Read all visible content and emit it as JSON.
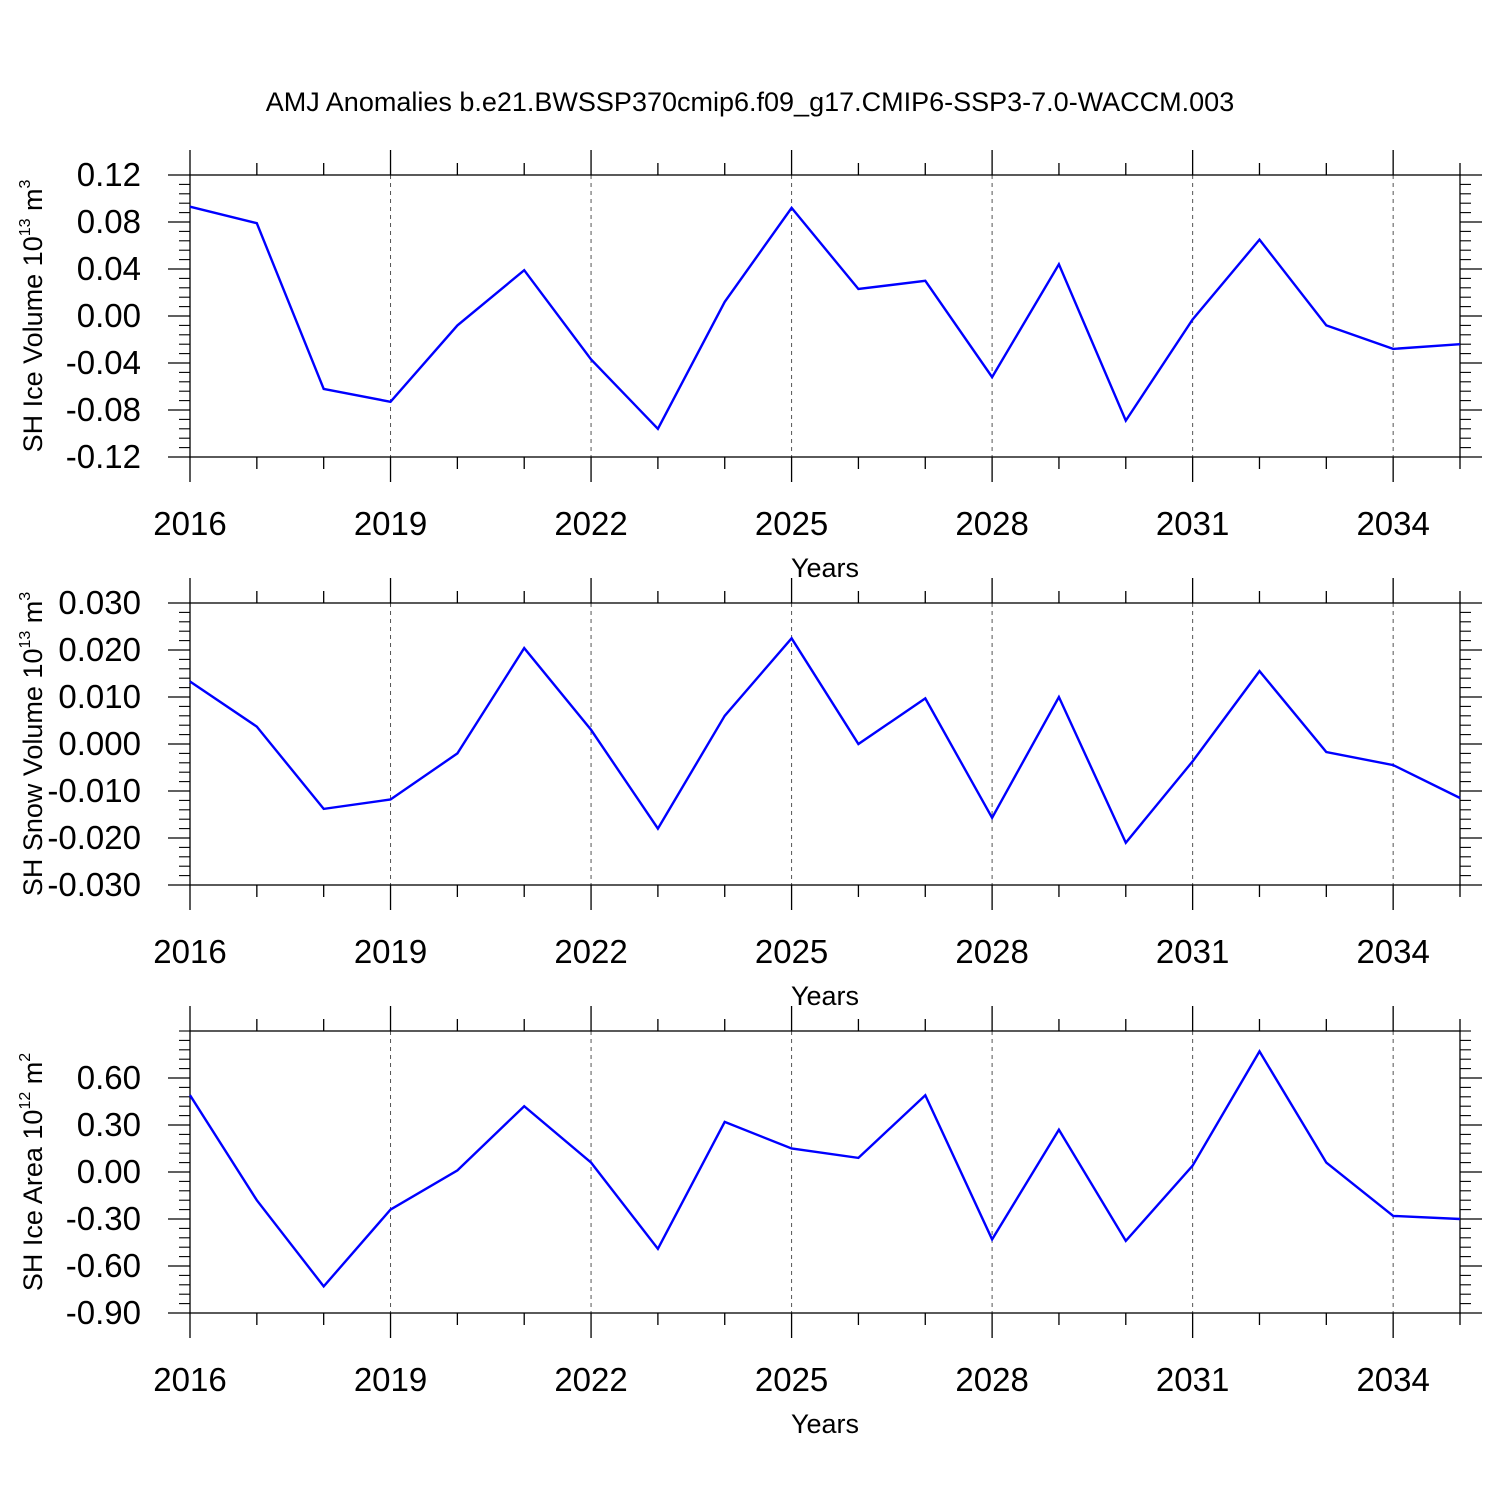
{
  "title": "AMJ Anomalies b.e21.BWSSP370cmip6.f09_g17.CMIP6-SSP3-7.0-WACCM.003",
  "chart_data": [
    {
      "type": "line",
      "ylabel": {
        "main": "SH Ice Volume 10",
        "exp": "13",
        "unit": " m",
        "unit_exp": "3"
      },
      "xlabel": "Years",
      "xlim": [
        2016,
        2035
      ],
      "ylim": [
        -0.12,
        0.12
      ],
      "x_ticks": [
        2016,
        2019,
        2022,
        2025,
        2028,
        2031,
        2034
      ],
      "y_ticks": [
        -0.12,
        -0.08,
        -0.04,
        0.0,
        0.04,
        0.08,
        0.12
      ],
      "y_tick_labels": [
        "-0.12",
        "-0.08",
        "-0.04",
        "0.00",
        "0.04",
        "0.08",
        "0.12"
      ],
      "color": "#0000ff",
      "x": [
        2016,
        2017,
        2018,
        2019,
        2020,
        2021,
        2022,
        2023,
        2024,
        2025,
        2026,
        2027,
        2028,
        2029,
        2030,
        2031,
        2032,
        2033,
        2034,
        2035
      ],
      "values": [
        0.093,
        0.079,
        -0.062,
        -0.073,
        -0.008,
        0.039,
        -0.037,
        -0.096,
        0.012,
        0.092,
        0.023,
        0.03,
        -0.052,
        0.044,
        -0.089,
        -0.003,
        0.065,
        -0.008,
        -0.028,
        -0.024
      ]
    },
    {
      "type": "line",
      "ylabel": {
        "main": "SH Snow Volume 10",
        "exp": "13",
        "unit": " m",
        "unit_exp": "3"
      },
      "xlabel": "Years",
      "xlim": [
        2016,
        2035
      ],
      "ylim": [
        -0.03,
        0.03
      ],
      "x_ticks": [
        2016,
        2019,
        2022,
        2025,
        2028,
        2031,
        2034
      ],
      "y_ticks": [
        -0.03,
        -0.02,
        -0.01,
        0.0,
        0.01,
        0.02,
        0.03
      ],
      "y_tick_labels": [
        "-0.030",
        "-0.020",
        "-0.010",
        "0.000",
        "0.010",
        "0.020",
        "0.030"
      ],
      "color": "#0000ff",
      "x": [
        2016,
        2017,
        2018,
        2019,
        2020,
        2021,
        2022,
        2023,
        2024,
        2025,
        2026,
        2027,
        2028,
        2029,
        2030,
        2031,
        2032,
        2033,
        2034,
        2035
      ],
      "values": [
        0.0133,
        0.0037,
        -0.0138,
        -0.0118,
        -0.002,
        0.0204,
        0.003,
        -0.018,
        0.006,
        0.0225,
        0.0,
        0.0097,
        -0.0157,
        0.01,
        -0.021,
        -0.0037,
        0.0155,
        -0.0017,
        -0.0045,
        -0.0115
      ]
    },
    {
      "type": "line",
      "ylabel": {
        "main": "SH Ice Area 10",
        "exp": "12",
        "unit": " m",
        "unit_exp": "2"
      },
      "xlabel": "Years",
      "xlim": [
        2016,
        2035
      ],
      "ylim": [
        -0.9,
        0.9
      ],
      "x_ticks": [
        2016,
        2019,
        2022,
        2025,
        2028,
        2031,
        2034
      ],
      "y_ticks": [
        -0.9,
        -0.6,
        -0.3,
        0.0,
        0.3,
        0.6
      ],
      "y_tick_labels": [
        "-0.90",
        "-0.60",
        "-0.30",
        "0.00",
        "0.30",
        "0.60"
      ],
      "color": "#0000ff",
      "x": [
        2016,
        2017,
        2018,
        2019,
        2020,
        2021,
        2022,
        2023,
        2024,
        2025,
        2026,
        2027,
        2028,
        2029,
        2030,
        2031,
        2032,
        2033,
        2034,
        2035
      ],
      "values": [
        0.49,
        -0.18,
        -0.73,
        -0.24,
        0.01,
        0.42,
        0.06,
        -0.49,
        0.32,
        0.15,
        0.09,
        0.49,
        -0.43,
        0.27,
        -0.44,
        0.04,
        0.77,
        0.06,
        -0.28,
        -0.3
      ]
    }
  ]
}
